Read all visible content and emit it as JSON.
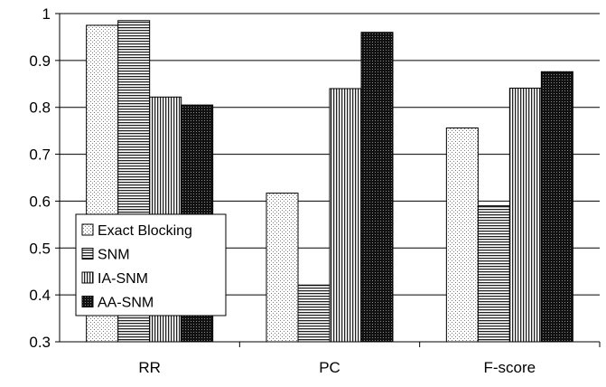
{
  "chart_data": {
    "type": "bar",
    "categories": [
      "RR",
      "PC",
      "F-score"
    ],
    "series": [
      {
        "name": "Exact Blocking",
        "values": [
          0.975,
          0.617,
          0.756
        ]
      },
      {
        "name": "SNM",
        "values": [
          0.985,
          0.421,
          0.59
        ]
      },
      {
        "name": "IA-SNM",
        "values": [
          0.822,
          0.84,
          0.841
        ]
      },
      {
        "name": "AA-SNM",
        "values": [
          0.805,
          0.96,
          0.876
        ]
      }
    ],
    "ylim": [
      0.3,
      1.0
    ],
    "yticks": [
      0.3,
      0.4,
      0.5,
      0.6,
      0.7,
      0.8,
      0.9,
      1.0
    ],
    "ytick_labels": [
      "0.3",
      "0.4",
      "0.5",
      "0.6",
      "0.7",
      "0.8",
      "0.9",
      "1"
    ],
    "grid": true,
    "legend_position": "bottom-left",
    "series_patterns": [
      "dots",
      "horizontal-lines",
      "vertical-lines",
      "dense-crosshatch"
    ]
  }
}
